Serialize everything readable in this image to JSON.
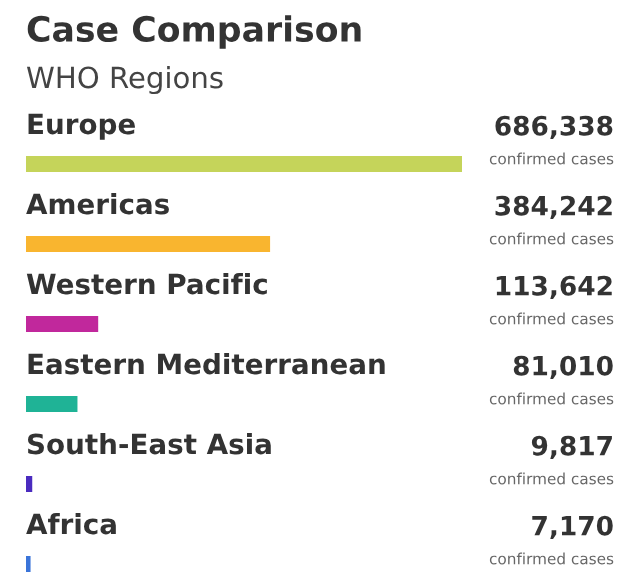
{
  "chart_data": {
    "type": "bar",
    "orientation": "horizontal",
    "title": "Case Comparison",
    "subtitle": "WHO Regions",
    "categories": [
      "Europe",
      "Americas",
      "Western Pacific",
      "Eastern Mediterranean",
      "South-East Asia",
      "Africa"
    ],
    "values": [
      686338,
      384242,
      113642,
      81010,
      9817,
      7170
    ],
    "colors": [
      "#c5d45a",
      "#f9b52f",
      "#c1289c",
      "#1fb396",
      "#4a2bbf",
      "#3a74d9"
    ],
    "value_labels": [
      "686,338",
      "384,242",
      "113,642",
      "81,010",
      "9,817",
      "7,170"
    ],
    "annotations": [
      "confirmed cases",
      "confirmed cases",
      "confirmed cases",
      "confirmed cases",
      "confirmed cases",
      "confirmed cases"
    ]
  }
}
